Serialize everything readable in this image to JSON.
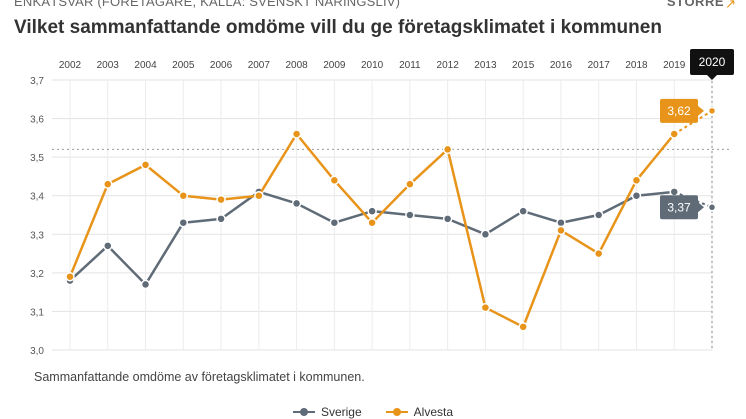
{
  "header": {
    "subtitle": "ENKÄTSVAR (FÖRETAGARE, KÄLLA: SVENSKT NÄRINGSLIV)",
    "enlarge_label": "STÖRRE",
    "enlarge_icon": "expand-arrow-icon"
  },
  "caption": "Sammanfattande omdöme av företagsklimatet i kommunen.",
  "chart_data": {
    "type": "line",
    "title": "Vilket sammanfattande omdöme vill du ge företagsklimatet i kommunen",
    "categories": [
      "2002",
      "2003",
      "2004",
      "2005",
      "2006",
      "2007",
      "2008",
      "2009",
      "2010",
      "2011",
      "2012",
      "2013",
      "2015",
      "2016",
      "2017",
      "2018",
      "2019",
      "2020"
    ],
    "ylim": [
      3.0,
      3.7
    ],
    "yticks": [
      "3,0",
      "3,1",
      "3,2",
      "3,3",
      "3,4",
      "3,5",
      "3,6",
      "3,7"
    ],
    "grid": true,
    "legend_position": "bottom",
    "reference_line": 3.52,
    "highlight_category": "2020",
    "series": [
      {
        "name": "Sverige",
        "color": "#5f6b77",
        "values": [
          3.18,
          3.27,
          3.17,
          3.33,
          3.34,
          3.41,
          3.38,
          3.33,
          3.36,
          3.35,
          3.34,
          3.3,
          3.36,
          3.33,
          3.35,
          3.4,
          3.41,
          3.37
        ],
        "end_label": "3,37"
      },
      {
        "name": "Alvesta",
        "color": "#e8941a",
        "values": [
          3.19,
          3.43,
          3.48,
          3.4,
          3.39,
          3.4,
          3.56,
          3.44,
          3.33,
          3.43,
          3.52,
          3.11,
          3.06,
          3.31,
          3.25,
          3.44,
          3.56,
          3.62
        ],
        "end_label": "3,62"
      }
    ]
  }
}
